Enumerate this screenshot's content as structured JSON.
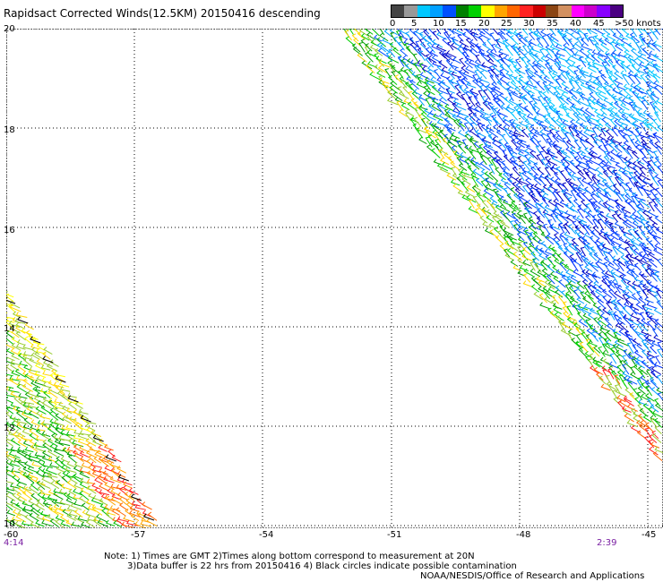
{
  "title": "Rapidsact Corrected Winds(12.5KM) 20150416 descending",
  "legend": {
    "colors": [
      "#444444",
      "#999999",
      "#00c8ff",
      "#00a0ff",
      "#0050ff",
      "#008000",
      "#00d000",
      "#ffff00",
      "#ffa500",
      "#ff6600",
      "#ff2222",
      "#cc0000",
      "#8b4513",
      "#d29060",
      "#ff00ff",
      "#cc00cc",
      "#8800ff",
      "#4b0082"
    ],
    "labels": [
      "0",
      "5",
      "10",
      "15",
      "20",
      "25",
      "30",
      "35",
      "40",
      "45",
      ">50 knots"
    ]
  },
  "axes": {
    "y_ticks": [
      "20",
      "18",
      "16",
      "14",
      "12",
      "10"
    ],
    "x_ticks": [
      "-60",
      "-57",
      "-54",
      "-51",
      "-48",
      "-45"
    ]
  },
  "times": {
    "left": "4:14",
    "right": "2:39"
  },
  "notes": {
    "line1": "Note: 1) Times are GMT 2)Times along bottom correspond to measurement at 20N",
    "line2": "3)Data buffer is 22 hrs from 20150416 4) Black circles indicate possible contamination",
    "line3": "NOAA/NESDIS/Office of Research and Applications"
  }
}
